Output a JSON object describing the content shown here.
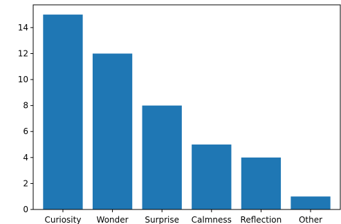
{
  "chart_data": {
    "type": "bar",
    "title": "",
    "xlabel": "",
    "ylabel": "",
    "categories": [
      "Curiosity",
      "Wonder",
      "Surprise",
      "Calmness",
      "Reflection",
      "Other"
    ],
    "values": [
      15,
      12,
      8,
      5,
      4,
      1
    ],
    "ylim": [
      0,
      15.75
    ],
    "yticks": [
      "0",
      "2",
      "4",
      "6",
      "8",
      "10",
      "12",
      "14"
    ],
    "bar_color": "#1f77b4",
    "grid": false,
    "legend": "none"
  }
}
